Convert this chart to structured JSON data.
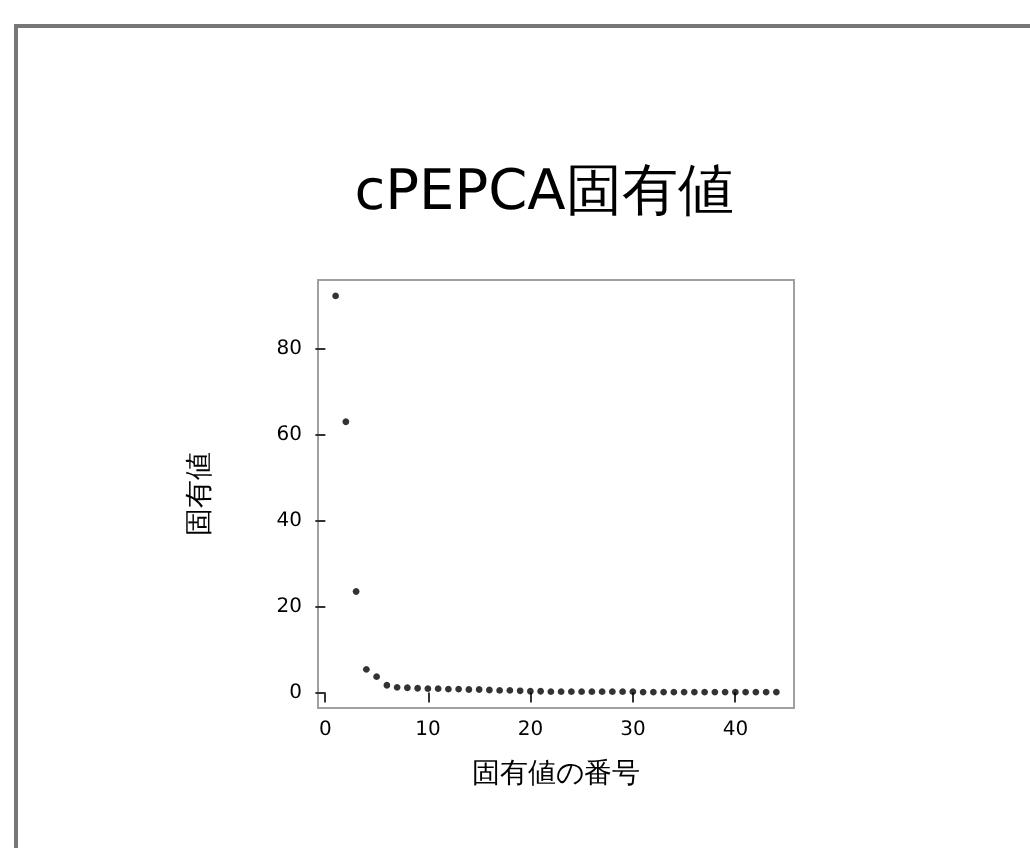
{
  "chart_data": {
    "type": "scatter",
    "title": "cPEPCA固有値",
    "xlabel": "固有値の番号",
    "ylabel": "固有値",
    "x": [
      1,
      2,
      3,
      4,
      5,
      6,
      7,
      8,
      9,
      10,
      11,
      12,
      13,
      14,
      15,
      16,
      17,
      18,
      19,
      20,
      21,
      22,
      23,
      24,
      25,
      26,
      27,
      28,
      29,
      30,
      31,
      32,
      33,
      34,
      35,
      36,
      37,
      38,
      39,
      40,
      41,
      42,
      43,
      44
    ],
    "values": [
      92.3,
      63,
      23.5,
      5.4,
      3.7,
      1.7,
      1.2,
      1.1,
      1.0,
      0.9,
      0.9,
      0.8,
      0.8,
      0.7,
      0.7,
      0.6,
      0.5,
      0.5,
      0.4,
      0.3,
      0.3,
      0.2,
      0.2,
      0.2,
      0.2,
      0.2,
      0.2,
      0.2,
      0.2,
      0.2,
      0.1,
      0.1,
      0.1,
      0.1,
      0.1,
      0.1,
      0.1,
      0.1,
      0.1,
      0.1,
      0.1,
      0.1,
      0.1,
      0.1
    ],
    "color": "#000000",
    "marker": "circle",
    "grid": false,
    "xlim": [
      -0.72,
      45.72
    ],
    "ylim": [
      -3.6,
      96
    ],
    "xticks": [
      0,
      10,
      20,
      30,
      40
    ],
    "yticks": [
      0,
      20,
      40,
      60,
      80
    ]
  }
}
